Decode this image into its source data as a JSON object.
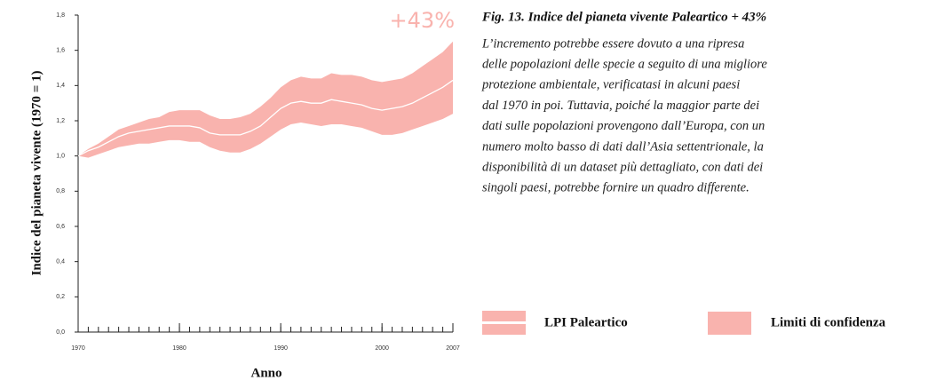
{
  "chart_data": {
    "type": "line",
    "xlabel": "Anno",
    "ylabel": "Indice del pianeta vivente (1970 = 1)",
    "annotation": "+43%",
    "x": [
      1970,
      1971,
      1972,
      1973,
      1974,
      1975,
      1976,
      1977,
      1978,
      1979,
      1980,
      1981,
      1982,
      1983,
      1984,
      1985,
      1986,
      1987,
      1988,
      1989,
      1990,
      1991,
      1992,
      1993,
      1994,
      1995,
      1996,
      1997,
      1998,
      1999,
      2000,
      2001,
      2002,
      2003,
      2004,
      2005,
      2006,
      2007
    ],
    "series": [
      {
        "name": "LPI Paleartico",
        "color": "#ffffff",
        "values": [
          1.0,
          1.03,
          1.05,
          1.08,
          1.11,
          1.13,
          1.14,
          1.15,
          1.16,
          1.17,
          1.17,
          1.17,
          1.16,
          1.13,
          1.12,
          1.12,
          1.12,
          1.14,
          1.17,
          1.22,
          1.27,
          1.3,
          1.31,
          1.3,
          1.3,
          1.32,
          1.31,
          1.3,
          1.29,
          1.27,
          1.26,
          1.27,
          1.28,
          1.3,
          1.33,
          1.36,
          1.39,
          1.43
        ]
      }
    ],
    "band": {
      "name": "Limiti di confidenza",
      "color": "#f9b3ae",
      "upper": [
        1.0,
        1.04,
        1.07,
        1.11,
        1.15,
        1.17,
        1.19,
        1.21,
        1.22,
        1.25,
        1.26,
        1.26,
        1.26,
        1.23,
        1.21,
        1.21,
        1.22,
        1.24,
        1.28,
        1.33,
        1.39,
        1.43,
        1.45,
        1.44,
        1.44,
        1.47,
        1.46,
        1.46,
        1.45,
        1.43,
        1.42,
        1.43,
        1.44,
        1.47,
        1.51,
        1.55,
        1.59,
        1.65
      ],
      "lower": [
        1.0,
        0.99,
        1.01,
        1.03,
        1.05,
        1.06,
        1.07,
        1.07,
        1.08,
        1.09,
        1.09,
        1.08,
        1.08,
        1.05,
        1.03,
        1.02,
        1.02,
        1.04,
        1.07,
        1.11,
        1.15,
        1.18,
        1.19,
        1.18,
        1.17,
        1.18,
        1.18,
        1.17,
        1.16,
        1.14,
        1.12,
        1.12,
        1.13,
        1.15,
        1.17,
        1.19,
        1.21,
        1.24
      ]
    },
    "xlim": [
      1970,
      2007
    ],
    "xticks": [
      1970,
      1980,
      1990,
      2000,
      2007
    ],
    "ylim": [
      0,
      1.8
    ],
    "yticks": [
      {
        "value": 0,
        "label": "0,0"
      },
      {
        "value": 0.2,
        "label": "0,2"
      },
      {
        "value": 0.4,
        "label": "0,4"
      },
      {
        "value": 0.6,
        "label": "0,6"
      },
      {
        "value": 0.8,
        "label": "0,8"
      },
      {
        "value": 1,
        "label": "1,0"
      },
      {
        "value": 1.2,
        "label": "1,2"
      },
      {
        "value": 1.4,
        "label": "1,4"
      },
      {
        "value": 1.6,
        "label": "1,6"
      },
      {
        "value": 1.8,
        "label": "1,8"
      }
    ]
  },
  "caption": {
    "title": "Fig. 13. Indice del pianeta vivente Paleartico + 43%",
    "lines": [
      "L’incremento potrebbe essere dovuto a una ripresa",
      "delle popolazioni delle specie a seguito di una migliore",
      "protezione ambientale, verificatasi in alcuni paesi",
      "dal 1970 in poi. Tuttavia, poiché la maggior parte dei",
      "dati sulle popolazioni provengono dall’Europa, con un",
      "numero molto basso di dati dall’Asia settentrionale, la",
      "disponibilità di un dataset più dettagliato, con dati dei",
      "singoli paesi, potrebbe fornire un quadro differente."
    ]
  }
}
